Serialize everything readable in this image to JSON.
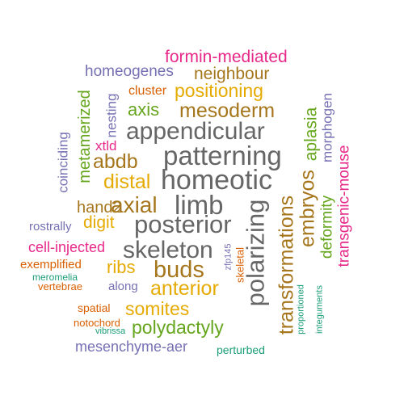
{
  "palette": {
    "green": "#1b9e77",
    "orange": "#d95f02",
    "purple": "#7570b3",
    "magenta": "#e7298a",
    "lime": "#66a61e",
    "yellow": "#e6ab02",
    "brown": "#a6761d",
    "gray": "#666666"
  },
  "words": [
    {
      "text": "formin-mediated",
      "color": "#e7298a"
    },
    {
      "text": "homeogenes",
      "color": "#7570b3"
    },
    {
      "text": "neighbour",
      "color": "#a6761d"
    },
    {
      "text": "cluster",
      "color": "#d95f02"
    },
    {
      "text": "positioning",
      "color": "#e6ab02"
    },
    {
      "text": "metamerized",
      "color": "#66a61e"
    },
    {
      "text": "nesting",
      "color": "#7570b3"
    },
    {
      "text": "axis",
      "color": "#66a61e"
    },
    {
      "text": "mesoderm",
      "color": "#a6761d"
    },
    {
      "text": "aplasia",
      "color": "#66a61e"
    },
    {
      "text": "morphogen",
      "color": "#7570b3"
    },
    {
      "text": "appendicular",
      "color": "#666666"
    },
    {
      "text": "coinciding",
      "color": "#7570b3"
    },
    {
      "text": "xtld",
      "color": "#e7298a"
    },
    {
      "text": "abdb",
      "color": "#a6761d"
    },
    {
      "text": "patterning",
      "color": "#666666"
    },
    {
      "text": "transgenic-mouse",
      "color": "#e7298a"
    },
    {
      "text": "distal",
      "color": "#e6ab02"
    },
    {
      "text": "homeotic",
      "color": "#666666"
    },
    {
      "text": "embryos",
      "color": "#a6761d"
    },
    {
      "text": "deformity",
      "color": "#66a61e"
    },
    {
      "text": "hand2",
      "color": "#a6761d"
    },
    {
      "text": "axial",
      "color": "#a6761d"
    },
    {
      "text": "limb",
      "color": "#666666"
    },
    {
      "text": "transformations",
      "color": "#a6761d"
    },
    {
      "text": "polarizing",
      "color": "#666666"
    },
    {
      "text": "rostrally",
      "color": "#7570b3"
    },
    {
      "text": "digit",
      "color": "#e6ab02"
    },
    {
      "text": "posterior",
      "color": "#666666"
    },
    {
      "text": "cell-injected",
      "color": "#e7298a"
    },
    {
      "text": "skeleton",
      "color": "#666666"
    },
    {
      "text": "zfp145",
      "color": "#7570b3"
    },
    {
      "text": "skeletal",
      "color": "#d95f02"
    },
    {
      "text": "exemplified",
      "color": "#d95f02"
    },
    {
      "text": "ribs",
      "color": "#e6ab02"
    },
    {
      "text": "buds",
      "color": "#a6761d"
    },
    {
      "text": "meromelia",
      "color": "#1b9e77"
    },
    {
      "text": "vertebrae",
      "color": "#d95f02"
    },
    {
      "text": "along",
      "color": "#7570b3"
    },
    {
      "text": "anterior",
      "color": "#e6ab02"
    },
    {
      "text": "proportioned",
      "color": "#1b9e77"
    },
    {
      "text": "integuments",
      "color": "#1b9e77"
    },
    {
      "text": "spatial",
      "color": "#d95f02"
    },
    {
      "text": "somites",
      "color": "#e6ab02"
    },
    {
      "text": "notochord",
      "color": "#d95f02"
    },
    {
      "text": "vibrissa",
      "color": "#1b9e77"
    },
    {
      "text": "polydactyly",
      "color": "#66a61e"
    },
    {
      "text": "mesenchyme-aer",
      "color": "#7570b3"
    },
    {
      "text": "perturbed",
      "color": "#1b9e77"
    }
  ]
}
